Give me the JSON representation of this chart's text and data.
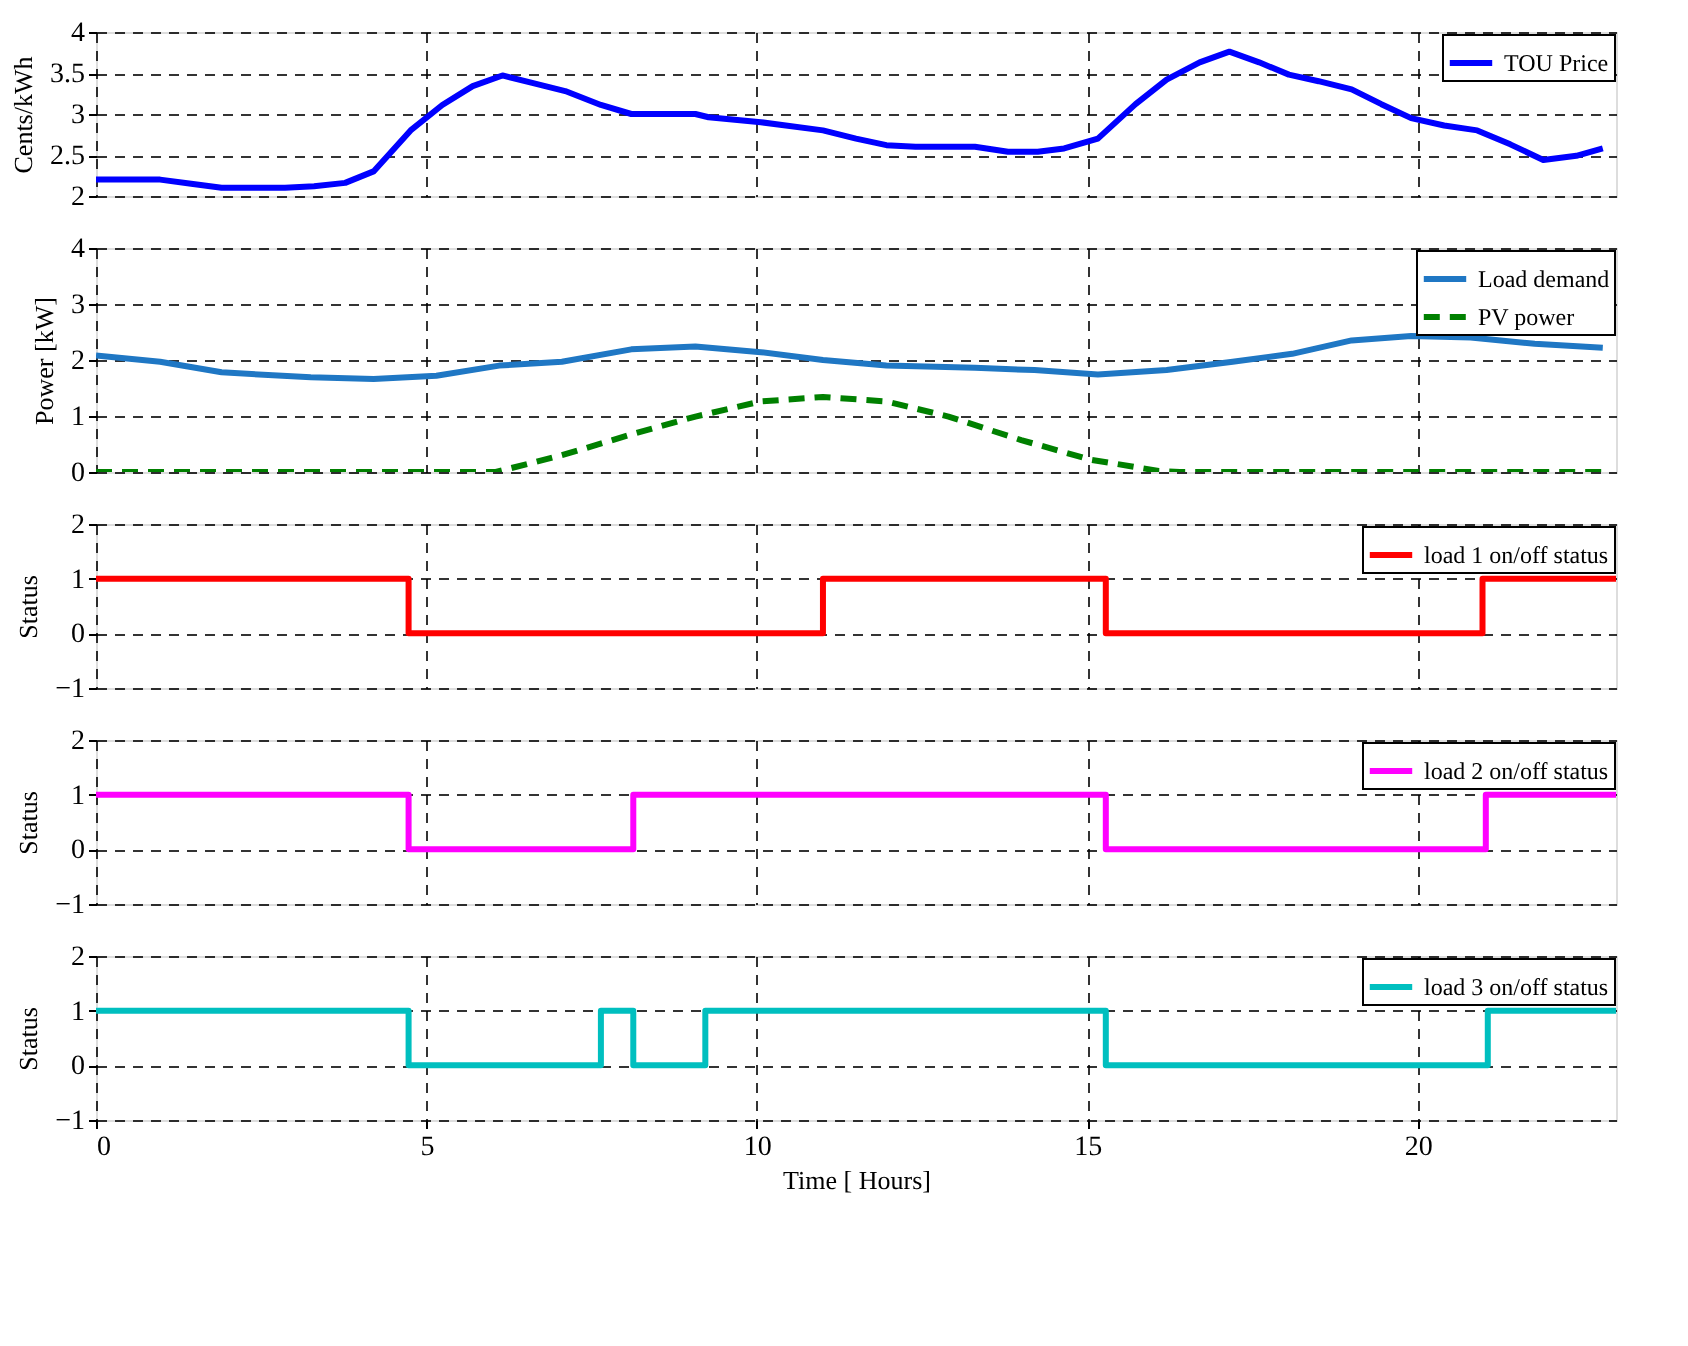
{
  "chart_data": [
    {
      "type": "line",
      "ylabel": "Cents/kWh",
      "x": [
        0,
        0.97,
        1.44,
        1.9,
        2.4,
        2.86,
        3.3,
        3.77,
        4.2,
        4.76,
        5.24,
        5.7,
        6.15,
        6.6,
        7.1,
        7.64,
        8.1,
        9.07,
        9.27,
        10.06,
        11.0,
        11.5,
        11.96,
        12.4,
        13.3,
        13.8,
        14.25,
        14.65,
        15.16,
        15.73,
        16.2,
        16.7,
        17.15,
        17.6,
        18.05,
        18.5,
        19.0,
        19.45,
        19.9,
        20.4,
        20.9,
        21.4,
        21.9,
        22.4,
        22.8
      ],
      "series": [
        {
          "name": "TOU Price",
          "color": "#0000ff",
          "values": [
            2.2,
            2.2,
            2.15,
            2.1,
            2.1,
            2.1,
            2.12,
            2.16,
            2.3,
            2.8,
            3.11,
            3.34,
            3.47,
            3.38,
            3.28,
            3.11,
            3.0,
            3.0,
            2.96,
            2.9,
            2.8,
            2.7,
            2.62,
            2.6,
            2.6,
            2.54,
            2.54,
            2.58,
            2.7,
            3.12,
            3.42,
            3.63,
            3.76,
            3.63,
            3.48,
            3.4,
            3.3,
            3.12,
            2.95,
            2.86,
            2.8,
            2.63,
            2.44,
            2.49,
            2.58
          ]
        }
      ],
      "xlim": [
        0,
        23
      ],
      "xticks": [
        0,
        5,
        10,
        15,
        20
      ],
      "ylim": [
        2,
        4
      ],
      "yticks": [
        2,
        2.5,
        3,
        3.5,
        4
      ],
      "grid": true,
      "legend": "top right",
      "tick_labels": "y",
      "marker": "none",
      "line_style": "solid"
    },
    {
      "type": "line",
      "ylabel": "Power [kW]",
      "series": [
        {
          "name": "Load demand",
          "color": "#1f77c4",
          "x": [
            0,
            0.97,
            1.9,
            3.25,
            4.2,
            5.15,
            6.1,
            7.05,
            8.1,
            9.07,
            10.06,
            11.0,
            11.96,
            13.3,
            14.2,
            15.16,
            16.2,
            17.2,
            18.1,
            19.0,
            19.9,
            20.8,
            21.77,
            22.8
          ],
          "values": [
            2.08,
            1.97,
            1.78,
            1.69,
            1.66,
            1.72,
            1.9,
            1.97,
            2.19,
            2.24,
            2.14,
            2.0,
            1.9,
            1.86,
            1.82,
            1.74,
            1.82,
            1.97,
            2.11,
            2.35,
            2.43,
            2.4,
            2.29,
            2.22
          ]
        },
        {
          "name": "PV power",
          "color": "#008000",
          "line_style": "dashed",
          "x": [
            0,
            6.05,
            7.05,
            8.1,
            9.07,
            10.06,
            11.0,
            11.96,
            12.9,
            14.0,
            15.05,
            16.08,
            16.4,
            22.8
          ],
          "values": [
            0,
            0,
            0.3,
            0.67,
            0.99,
            1.26,
            1.34,
            1.26,
            0.99,
            0.57,
            0.22,
            0.02,
            0,
            0
          ]
        }
      ],
      "xlim": [
        0,
        23
      ],
      "xticks": [
        0,
        5,
        10,
        15,
        20
      ],
      "ylim": [
        0,
        4
      ],
      "yticks": [
        0,
        1,
        2,
        3,
        4
      ],
      "grid": true,
      "legend": "top right",
      "tick_labels": "y",
      "marker": "none",
      "line_style": "solid"
    },
    {
      "type": "step",
      "ylabel": "Status",
      "series": [
        {
          "name": "load 1 on/off status",
          "color": "#ff0000",
          "x": [
            0,
            4.73,
            11.0,
            15.28,
            20.98,
            23
          ],
          "values": [
            1,
            0,
            1,
            0,
            1,
            1
          ]
        }
      ],
      "xlim": [
        0,
        23
      ],
      "xticks": [
        0,
        5,
        10,
        15,
        20
      ],
      "ylim": [
        -1,
        2
      ],
      "yticks": [
        -1,
        0,
        1,
        2
      ],
      "grid": true,
      "legend": "top right",
      "tick_labels": "y",
      "marker": "none",
      "line_style": "solid"
    },
    {
      "type": "step",
      "ylabel": "Status",
      "series": [
        {
          "name": "load 2 on/off status",
          "color": "#ff00ff",
          "x": [
            0,
            4.73,
            8.13,
            15.28,
            21.03,
            23
          ],
          "values": [
            1,
            0,
            1,
            0,
            1,
            1
          ]
        }
      ],
      "xlim": [
        0,
        23
      ],
      "xticks": [
        0,
        5,
        10,
        15,
        20
      ],
      "ylim": [
        -1,
        2
      ],
      "yticks": [
        -1,
        0,
        1,
        2
      ],
      "grid": true,
      "legend": "top right",
      "tick_labels": "y",
      "marker": "none",
      "line_style": "solid"
    },
    {
      "type": "step",
      "ylabel": "Status",
      "xlabel": "Time [ Hours]",
      "series": [
        {
          "name": "load 3 on/off status",
          "color": "#00bfbf",
          "x": [
            0,
            4.73,
            7.64,
            8.13,
            9.22,
            15.28,
            21.06,
            23
          ],
          "values": [
            1,
            0,
            1,
            0,
            1,
            0,
            1,
            1
          ]
        }
      ],
      "xlim": [
        0,
        23
      ],
      "xticks": [
        0,
        5,
        10,
        15,
        20
      ],
      "ylim": [
        -1,
        2
      ],
      "yticks": [
        -1,
        0,
        1,
        2
      ],
      "grid": true,
      "legend": "top right",
      "marker": "none",
      "line_style": "solid"
    }
  ]
}
